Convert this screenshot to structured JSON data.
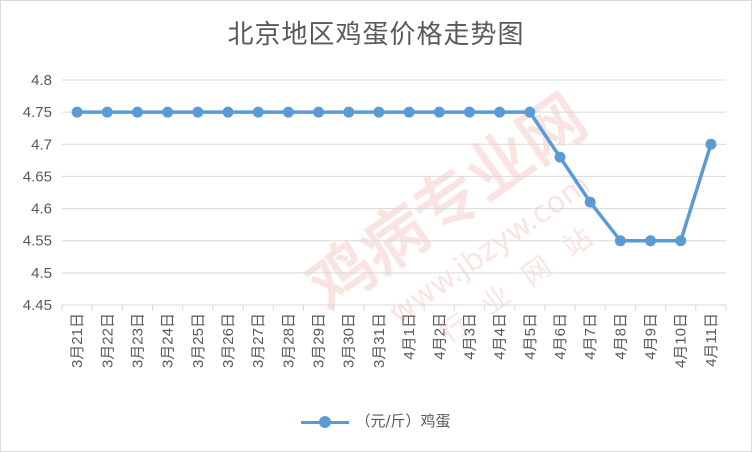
{
  "title": "北京地区鸡蛋价格走势图",
  "watermark": {
    "main": "鸡病专业网",
    "url": "www.jbzyw.com",
    "tagline": "行业网站"
  },
  "colors": {
    "series": "#5b9bd5",
    "grid": "#d9d9d9",
    "text": "#595959"
  },
  "chart_data": {
    "type": "line",
    "title": "北京地区鸡蛋价格走势图",
    "categories": [
      "3月21日",
      "3月22日",
      "3月23日",
      "3月24日",
      "3月25日",
      "3月26日",
      "3月27日",
      "3月28日",
      "3月29日",
      "3月30日",
      "3月31日",
      "4月1日",
      "4月2日",
      "4月3日",
      "4月4日",
      "4月5日",
      "4月6日",
      "4月7日",
      "4月8日",
      "4月9日",
      "4月10日",
      "4月11日"
    ],
    "series": [
      {
        "name": "（元/斤）鸡蛋",
        "values": [
          4.75,
          4.75,
          4.75,
          4.75,
          4.75,
          4.75,
          4.75,
          4.75,
          4.75,
          4.75,
          4.75,
          4.75,
          4.75,
          4.75,
          4.75,
          4.75,
          4.68,
          4.61,
          4.55,
          4.55,
          4.55,
          4.7
        ]
      }
    ],
    "ylim": [
      4.45,
      4.8
    ],
    "yticks": [
      "4.45",
      "4.5",
      "4.55",
      "4.6",
      "4.65",
      "4.7",
      "4.75",
      "4.8"
    ],
    "grid": true,
    "legend_position": "bottom"
  }
}
